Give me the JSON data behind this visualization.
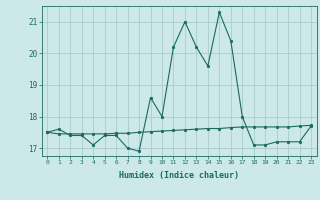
{
  "xlabel": "Humidex (Indice chaleur)",
  "bg_color": "#cce8e8",
  "line_color": "#1a6b5e",
  "grid_color": "#aacccc",
  "xlim": [
    -0.5,
    23.5
  ],
  "ylim": [
    16.75,
    21.5
  ],
  "yticks": [
    17,
    18,
    19,
    20,
    21
  ],
  "xticks": [
    0,
    1,
    2,
    3,
    4,
    5,
    6,
    7,
    8,
    9,
    10,
    11,
    12,
    13,
    14,
    15,
    16,
    17,
    18,
    19,
    20,
    21,
    22,
    23
  ],
  "series1": [
    17.5,
    17.6,
    17.4,
    17.4,
    17.1,
    17.4,
    17.4,
    17.0,
    16.9,
    18.6,
    18.0,
    20.2,
    21.0,
    20.2,
    19.6,
    21.3,
    20.4,
    18.0,
    17.1,
    17.1,
    17.2,
    17.2,
    17.2,
    17.7
  ],
  "series2": [
    17.5,
    17.45,
    17.45,
    17.45,
    17.45,
    17.45,
    17.47,
    17.47,
    17.5,
    17.52,
    17.54,
    17.56,
    17.58,
    17.6,
    17.62,
    17.62,
    17.65,
    17.67,
    17.67,
    17.67,
    17.67,
    17.67,
    17.7,
    17.72
  ]
}
